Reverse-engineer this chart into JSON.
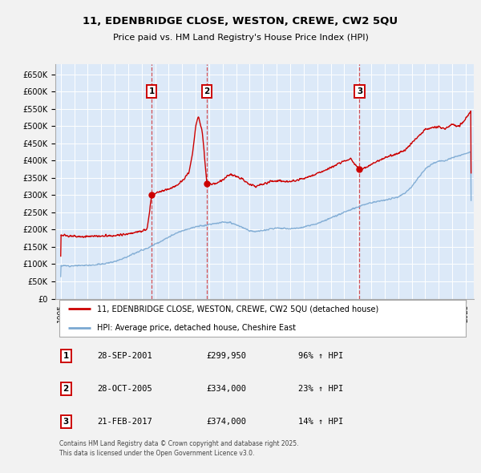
{
  "title": "11, EDENBRIDGE CLOSE, WESTON, CREWE, CW2 5QU",
  "subtitle": "Price paid vs. HM Land Registry's House Price Index (HPI)",
  "ylim": [
    0,
    680000
  ],
  "yticks": [
    0,
    50000,
    100000,
    150000,
    200000,
    250000,
    300000,
    350000,
    400000,
    450000,
    500000,
    550000,
    600000,
    650000
  ],
  "ytick_labels": [
    "£0",
    "£50K",
    "£100K",
    "£150K",
    "£200K",
    "£250K",
    "£300K",
    "£350K",
    "£400K",
    "£450K",
    "£500K",
    "£550K",
    "£600K",
    "£650K"
  ],
  "xlim_start": 1994.6,
  "xlim_end": 2025.6,
  "plot_bg_color": "#dce9f8",
  "grid_color": "#ffffff",
  "red_line_color": "#cc0000",
  "blue_line_color": "#7aa8d2",
  "sale_dates": [
    2001.742,
    2005.826,
    2017.137
  ],
  "sale_prices": [
    299950,
    334000,
    374000
  ],
  "sale_labels": [
    "1",
    "2",
    "3"
  ],
  "sale_info": [
    [
      "1",
      "28-SEP-2001",
      "£299,950",
      "96% ↑ HPI"
    ],
    [
      "2",
      "28-OCT-2005",
      "£334,000",
      "23% ↑ HPI"
    ],
    [
      "3",
      "21-FEB-2017",
      "£374,000",
      "14% ↑ HPI"
    ]
  ],
  "legend_line1": "11, EDENBRIDGE CLOSE, WESTON, CREWE, CW2 5QU (detached house)",
  "legend_line2": "HPI: Average price, detached house, Cheshire East",
  "footer": "Contains HM Land Registry data © Crown copyright and database right 2025.\nThis data is licensed under the Open Government Licence v3.0."
}
